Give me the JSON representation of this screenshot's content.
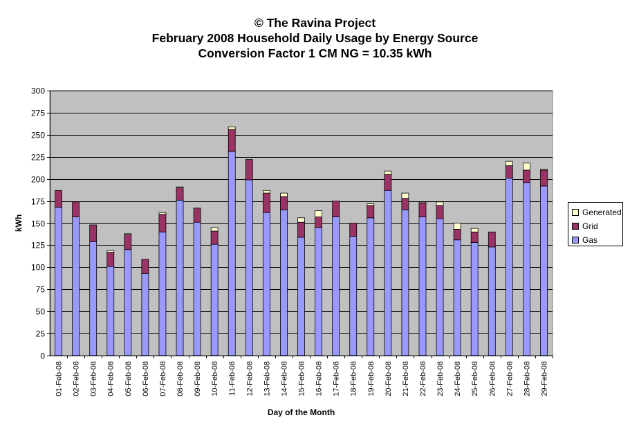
{
  "chart_data": {
    "type": "bar",
    "stacked": true,
    "title": "© The Ravina Project",
    "subtitle_1": "February 2008 Household Daily Usage by Energy Source",
    "subtitle_2": "Conversion Factor 1 CM NG = 10.35 kWh",
    "xlabel": "Day of the Month",
    "ylabel": "kWh",
    "ylim": [
      0,
      300
    ],
    "yticks": [
      0,
      25,
      50,
      75,
      100,
      125,
      150,
      175,
      200,
      225,
      250,
      275,
      300
    ],
    "grid": true,
    "legend_position": "right",
    "categories": [
      "01-Feb-08",
      "02-Feb-08",
      "03-Feb-08",
      "04-Feb-08",
      "05-Feb-08",
      "06-Feb-08",
      "07-Feb-08",
      "08-Feb-08",
      "09-Feb-08",
      "10-Feb-08",
      "11-Feb-08",
      "12-Feb-08",
      "13-Feb-08",
      "14-Feb-08",
      "15-Feb-08",
      "16-Feb-08",
      "17-Feb-08",
      "18-Feb-08",
      "19-Feb-08",
      "20-Feb-08",
      "21-Feb-08",
      "22-Feb-08",
      "23-Feb-08",
      "24-Feb-08",
      "25-Feb-08",
      "26-Feb-08",
      "27-Feb-08",
      "28-Feb-08",
      "29-Feb-08"
    ],
    "series": [
      {
        "name": "Gas",
        "color": "#9999ff",
        "values": [
          168,
          157,
          129,
          101,
          120,
          93,
          140,
          176,
          151,
          126,
          231,
          199,
          162,
          165,
          134,
          145,
          157,
          135,
          156,
          187,
          165,
          157,
          155,
          131,
          128,
          123,
          201,
          196,
          192
        ]
      },
      {
        "name": "Grid",
        "color": "#993366",
        "values": [
          19,
          17,
          19,
          16,
          17,
          16,
          20,
          14,
          16,
          15,
          25,
          23,
          22,
          15,
          17,
          12,
          18,
          15,
          14,
          18,
          13,
          16,
          15,
          12,
          12,
          17,
          14,
          14,
          18
        ]
      },
      {
        "name": "Generated",
        "color": "#ffffcc",
        "values": [
          0,
          0,
          0,
          2,
          1,
          0,
          2,
          1,
          0,
          4,
          3,
          0,
          3,
          4,
          5,
          7,
          0,
          0,
          2,
          4,
          6,
          1,
          4,
          7,
          4,
          0,
          5,
          8,
          1
        ]
      }
    ],
    "plot_bg": "#c0c0c0",
    "legend_order": [
      "Generated",
      "Grid",
      "Gas"
    ]
  }
}
